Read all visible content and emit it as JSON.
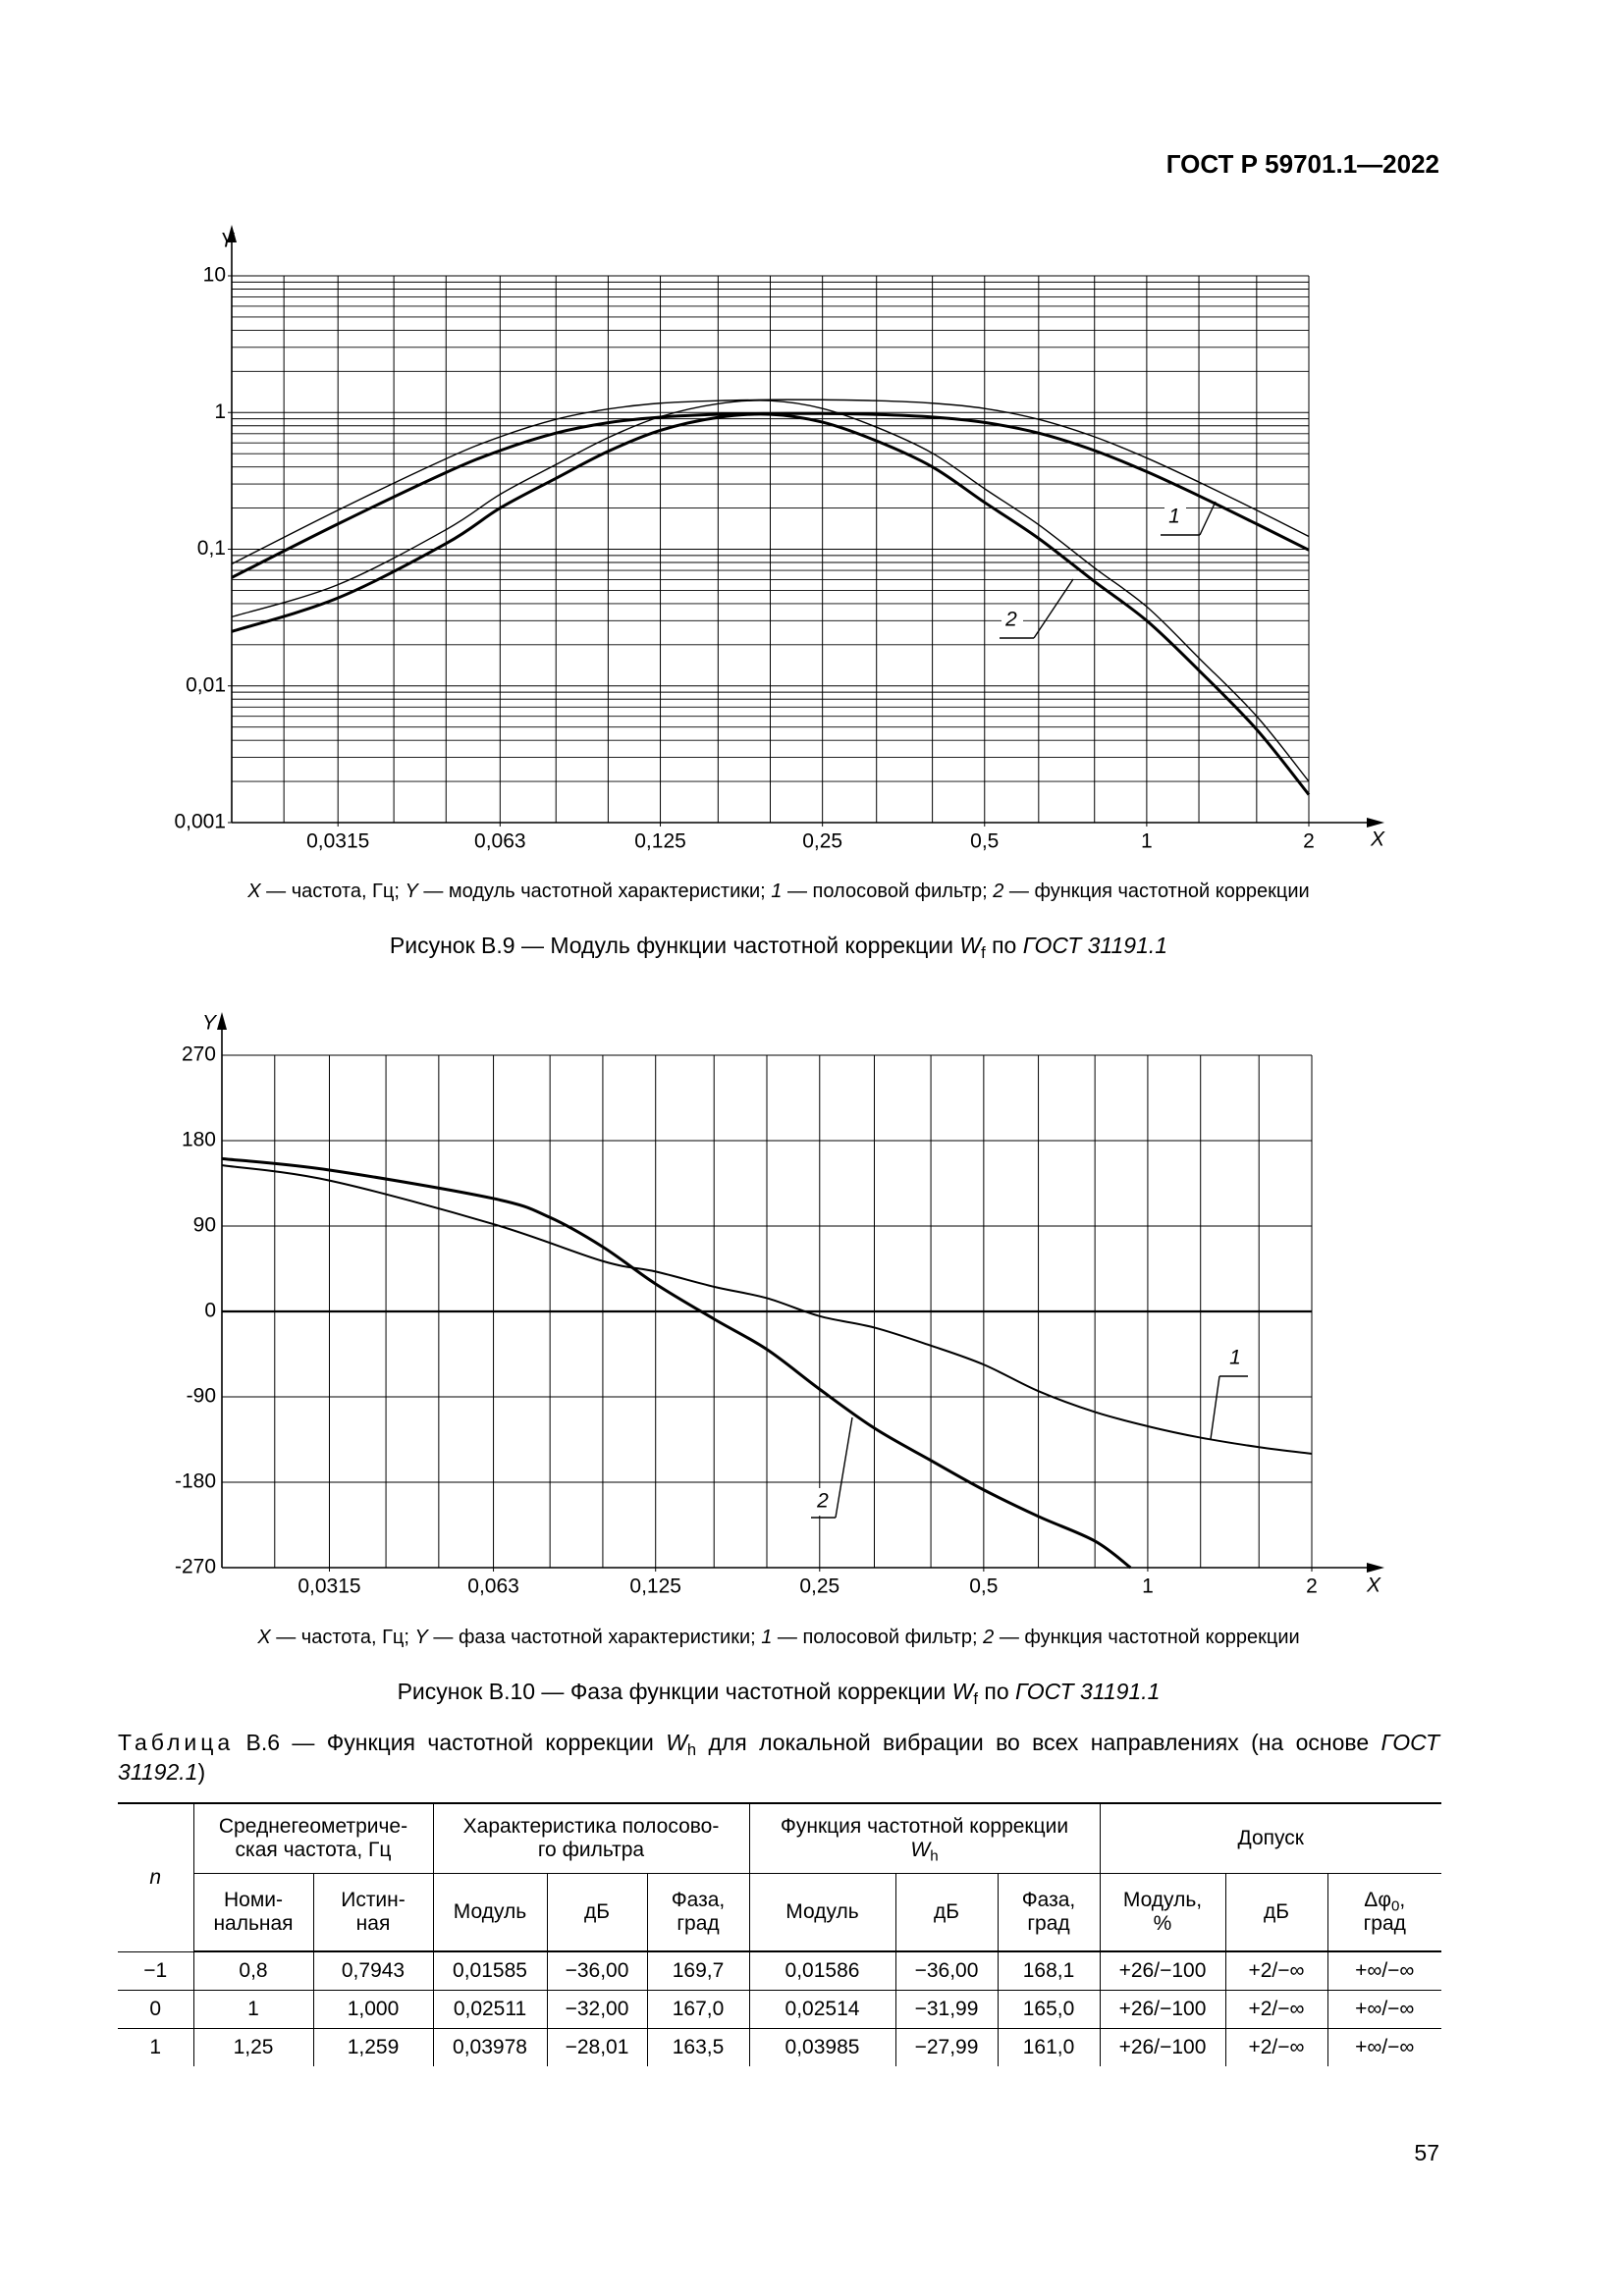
{
  "header": {
    "title": "ГОСТ Р 59701.1—2022"
  },
  "chart_data": [
    {
      "type": "line",
      "xscale": "log",
      "yscale": "log",
      "xlim": [
        0.02,
        2
      ],
      "ylim": [
        0.001,
        10
      ],
      "xticks": [
        {
          "value": 0.0315,
          "label": "0,0315"
        },
        {
          "value": 0.063,
          "label": "0,063"
        },
        {
          "value": 0.125,
          "label": "0,125"
        },
        {
          "value": 0.25,
          "label": "0,25"
        },
        {
          "value": 0.5,
          "label": "0,5"
        },
        1,
        2
      ],
      "yticks": [
        {
          "value": 0.001,
          "label": "0,001"
        },
        {
          "value": 0.01,
          "label": "0,01"
        },
        {
          "value": 0.1,
          "label": "0,1"
        },
        1,
        10
      ],
      "xgrid": [
        0.02,
        0.025,
        0.0315,
        0.04,
        0.05,
        0.063,
        0.08,
        0.1,
        0.125,
        0.16,
        0.2,
        0.25,
        0.315,
        0.4,
        0.5,
        0.63,
        0.8,
        1,
        1.25,
        1.6,
        2
      ],
      "ygrid": [
        0.001,
        0.002,
        0.003,
        0.004,
        0.005,
        0.006,
        0.007,
        0.008,
        0.009,
        0.01,
        0.02,
        0.03,
        0.04,
        0.05,
        0.06,
        0.07,
        0.08,
        0.09,
        0.1,
        0.2,
        0.3,
        0.4,
        0.5,
        0.6,
        0.7,
        0.8,
        0.9,
        1,
        2,
        3,
        4,
        5,
        6,
        7,
        8,
        9,
        10
      ],
      "xlabel": "X",
      "ylabel": "Y",
      "series": [
        {
          "color": "#000000",
          "line_width": 3,
          "x": [
            0.02,
            0.0315,
            0.05,
            0.063,
            0.08,
            0.1,
            0.125,
            0.16,
            0.2,
            0.25,
            0.315,
            0.4,
            0.5,
            0.63,
            0.8,
            1,
            1.25,
            1.6,
            2
          ],
          "values": [
            0.062,
            0.153,
            0.364,
            0.527,
            0.707,
            0.842,
            0.925,
            0.969,
            0.982,
            0.983,
            0.968,
            0.927,
            0.846,
            0.707,
            0.527,
            0.369,
            0.246,
            0.153,
            0.0987
          ]
        },
        {
          "color": "#000000",
          "line_width": 1.4,
          "x": [
            0.02,
            0.0315,
            0.05,
            0.063,
            0.08,
            0.1,
            0.125,
            0.16,
            0.2,
            0.25,
            0.315,
            0.4,
            0.5,
            0.63,
            0.8,
            1,
            1.25,
            1.6,
            2
          ],
          "values": [
            0.078,
            0.193,
            0.459,
            0.664,
            0.891,
            1.06,
            1.17,
            1.22,
            1.24,
            1.24,
            1.22,
            1.17,
            1.07,
            0.891,
            0.664,
            0.465,
            0.31,
            0.193,
            0.124
          ]
        },
        {
          "color": "#000000",
          "line_width": 3,
          "x": [
            0.02,
            0.0315,
            0.05,
            0.063,
            0.08,
            0.1,
            0.125,
            0.16,
            0.2,
            0.25,
            0.315,
            0.4,
            0.5,
            0.63,
            0.8,
            1,
            1.25,
            1.6,
            2
          ],
          "values": [
            0.025,
            0.044,
            0.11,
            0.2,
            0.33,
            0.52,
            0.74,
            0.92,
            0.97,
            0.85,
            0.62,
            0.4,
            0.22,
            0.12,
            0.058,
            0.03,
            0.013,
            0.0048,
            0.0016
          ]
        },
        {
          "color": "#000000",
          "line_width": 1.4,
          "x": [
            0.02,
            0.0315,
            0.05,
            0.063,
            0.08,
            0.1,
            0.125,
            0.16,
            0.2,
            0.25,
            0.315,
            0.4,
            0.5,
            0.63,
            0.8,
            1,
            1.25,
            1.6,
            2
          ],
          "values": [
            0.032,
            0.055,
            0.139,
            0.252,
            0.416,
            0.655,
            0.932,
            1.16,
            1.22,
            1.07,
            0.781,
            0.504,
            0.277,
            0.151,
            0.073,
            0.038,
            0.016,
            0.006,
            0.002
          ]
        }
      ],
      "annotations": [
        {
          "text": "1"
        },
        {
          "text": "2"
        }
      ],
      "note": [
        "X",
        " — частота, Гц; ",
        "Y",
        " — модуль частотной характеристики; ",
        "1",
        " — полосовой фильтр; ",
        "2",
        " — функция частотной коррекции"
      ],
      "caption": [
        "Рисунок В.9 — Модуль функции частотной коррекции ",
        "W",
        "f",
        " по ",
        "ГОСТ 31191.1"
      ]
    },
    {
      "type": "line",
      "xscale": "log",
      "yscale": "linear",
      "xlim": [
        0.02,
        2
      ],
      "ylim": [
        -270,
        270
      ],
      "xticks": [
        {
          "value": 0.0315,
          "label": "0,0315"
        },
        {
          "value": 0.063,
          "label": "0,063"
        },
        {
          "value": 0.125,
          "label": "0,125"
        },
        {
          "value": 0.25,
          "label": "0,25"
        },
        {
          "value": 0.5,
          "label": "0,5"
        },
        1,
        2
      ],
      "yticks": [
        270,
        180,
        90,
        0,
        -90,
        -180,
        -270
      ],
      "xgrid": [
        0.02,
        0.025,
        0.0315,
        0.04,
        0.05,
        0.063,
        0.08,
        0.1,
        0.125,
        0.16,
        0.2,
        0.25,
        0.315,
        0.4,
        0.5,
        0.63,
        0.8,
        1,
        1.25,
        1.6,
        2
      ],
      "zero_line": true,
      "xlabel": "X",
      "ylabel": "Y",
      "series": [
        {
          "color": "#000000",
          "line_width": 2,
          "x": [
            0.02,
            0.0315,
            0.063,
            0.1,
            0.125,
            0.16,
            0.2,
            0.25,
            0.315,
            0.4,
            0.5,
            0.63,
            0.8,
            1,
            1.25,
            1.6,
            2
          ],
          "values": [
            154,
            138,
            92,
            53,
            42,
            26,
            14,
            -5,
            -17,
            -36,
            -56,
            -84,
            -106,
            -121,
            -133,
            -143,
            -150
          ]
        },
        {
          "color": "#000000",
          "line_width": 3,
          "x": [
            0.02,
            0.0315,
            0.063,
            0.08,
            0.1,
            0.125,
            0.16,
            0.2,
            0.25,
            0.315,
            0.4,
            0.5,
            0.63,
            0.8,
            0.93
          ],
          "values": [
            161,
            149,
            119,
            99,
            68,
            29,
            -8,
            -40,
            -82,
            -123,
            -157,
            -188,
            -216,
            -242,
            -270
          ]
        }
      ],
      "annotations": [
        {
          "text": "1"
        },
        {
          "text": "2"
        }
      ],
      "note": [
        "X",
        " — частота, Гц; ",
        "Y",
        " — фаза частотной характеристики; ",
        "1",
        " — полосовой фильтр; ",
        "2",
        " — функция частотной коррекции"
      ],
      "caption": [
        "Рисунок В.10 — Фаза функции частотной коррекции ",
        "W",
        "f",
        " по ",
        "ГОСТ 31191.1"
      ]
    }
  ],
  "table": {
    "title": [
      "Таблица",
      " В.6 — Функция частотной коррекции ",
      "W",
      "h",
      " для локальной вибрации во всех направлениях (на основе ",
      "ГОСТ 31192.1",
      ")"
    ],
    "header": {
      "n": "n",
      "freq": "Среднегеометриче-\nская частота, Гц",
      "filter": "Характеристика полосово-\nго фильтра",
      "weight": [
        "Функция частотной коррекции",
        "W",
        "h"
      ],
      "tolerance": "Допуск",
      "sub": [
        "Номи-\nнальная",
        "Истин-\nная",
        "Модуль",
        "дБ",
        "Фаза,\nград",
        "Модуль",
        "дБ",
        "Фаза,\nград",
        "Модуль,\n%",
        "дБ"
      ],
      "dphi": [
        "Δφ",
        "0",
        ",\nград"
      ]
    },
    "rows": [
      [
        "−1",
        "0,8",
        "0,7943",
        "0,01585",
        "−36,00",
        "169,7",
        "0,01586",
        "−36,00",
        "168,1",
        "+26/−100",
        "+2/−∞",
        "+∞/−∞"
      ],
      [
        "0",
        "1",
        "1,000",
        "0,02511",
        "−32,00",
        "167,0",
        "0,02514",
        "−31,99",
        "165,0",
        "+26/−100",
        "+2/−∞",
        "+∞/−∞"
      ],
      [
        "1",
        "1,25",
        "1,259",
        "0,03978",
        "−28,01",
        "163,5",
        "0,03985",
        "−27,99",
        "161,0",
        "+26/−100",
        "+2/−∞",
        "+∞/−∞"
      ]
    ]
  },
  "footer": {
    "page": "57"
  }
}
